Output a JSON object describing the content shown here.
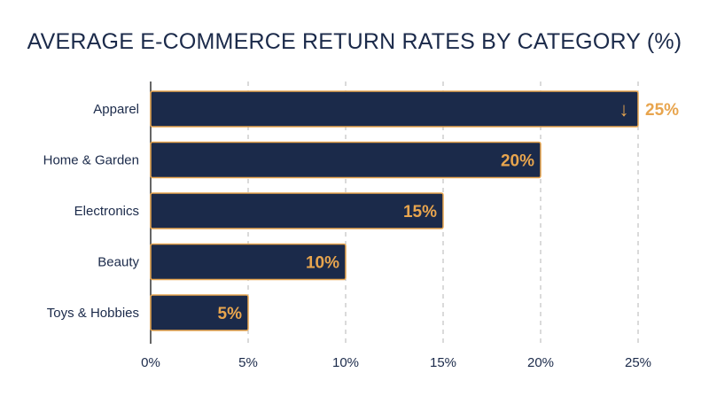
{
  "chart_data": {
    "type": "bar",
    "orientation": "horizontal",
    "title": "AVERAGE E-COMMERCE RETURN RATES BY CATEGORY (%)",
    "categories": [
      "Apparel",
      "Home & Garden",
      "Electronics",
      "Beauty",
      "Toys & Hobbies"
    ],
    "values": [
      25,
      20,
      15,
      10,
      5
    ],
    "data_labels": [
      "25%",
      "20%",
      "15%",
      "10%",
      "5%"
    ],
    "xlim": [
      0,
      25
    ],
    "x_ticks": [
      0,
      5,
      10,
      15,
      20,
      25
    ],
    "x_tick_labels": [
      "0%",
      "5%",
      "10%",
      "15%",
      "20%",
      "25%"
    ],
    "grid": "vertical dashed",
    "highlight": {
      "category": "Apparel",
      "icon": "arrow-down-icon",
      "glyph": "↓"
    },
    "colors": {
      "bar": "#1b2a4a",
      "accent": "#e8a54e",
      "text": "#1b2a4a",
      "grid": "#b5b5b5"
    }
  }
}
